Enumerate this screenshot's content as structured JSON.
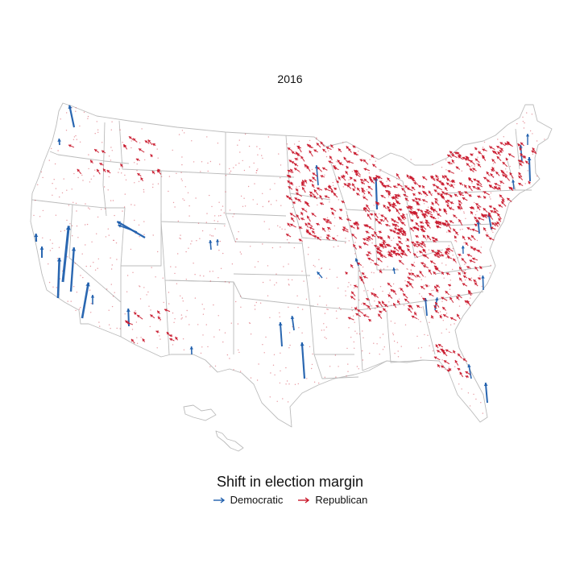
{
  "title": "2016",
  "legend": {
    "title": "Shift in election margin",
    "items": [
      {
        "label": "Democratic",
        "color": "#1f5fad",
        "icon": "arrow-icon"
      },
      {
        "label": "Republican",
        "color": "#c9182b",
        "icon": "arrow-icon"
      }
    ]
  },
  "colors": {
    "democratic": "#1f5fad",
    "republican": "#c9182b",
    "state_border": "#bbbbbb"
  }
}
